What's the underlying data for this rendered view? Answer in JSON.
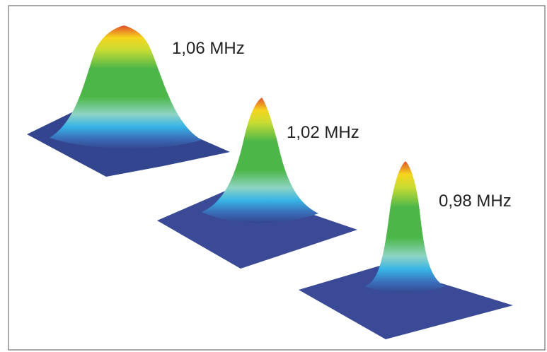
{
  "labels": [
    "1,06 MHz",
    "1,02 MHz",
    "0,98 MHz"
  ]
}
